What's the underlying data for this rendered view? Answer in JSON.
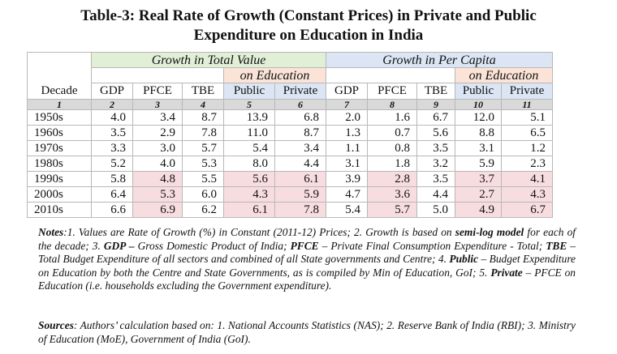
{
  "title_line1": "Table-3: Real Rate of Growth (Constant Prices) in Private and Public",
  "title_line2": "Expenditure on Education in India",
  "group_headers": {
    "total_value": "Growth in Total Value",
    "per_capita": "Growth in Per Capita",
    "on_education": "on Education"
  },
  "columns": [
    "Decade",
    "GDP",
    "PFCE",
    "TBE",
    "Public",
    "Private",
    "GDP",
    "PFCE",
    "TBE",
    "Public",
    "Private"
  ],
  "col_index": [
    "1",
    "2",
    "3",
    "4",
    "5",
    "6",
    "7",
    "8",
    "9",
    "10",
    "11"
  ],
  "rows": [
    [
      "1950s",
      "4.0",
      "3.4",
      "8.7",
      "13.9",
      "6.8",
      "2.0",
      "1.6",
      "6.7",
      "12.0",
      "5.1"
    ],
    [
      "1960s",
      "3.5",
      "2.9",
      "7.8",
      "11.0",
      "8.7",
      "1.3",
      "0.7",
      "5.6",
      "8.8",
      "6.5"
    ],
    [
      "1970s",
      "3.3",
      "3.0",
      "5.7",
      "5.4",
      "3.4",
      "1.1",
      "0.8",
      "3.5",
      "3.1",
      "1.2"
    ],
    [
      "1980s",
      "5.2",
      "4.0",
      "5.3",
      "8.0",
      "4.4",
      "3.1",
      "1.8",
      "3.2",
      "5.9",
      "2.3"
    ],
    [
      "1990s",
      "5.8",
      "4.8",
      "5.5",
      "5.6",
      "6.1",
      "3.9",
      "2.8",
      "3.5",
      "3.7",
      "4.1"
    ],
    [
      "2000s",
      "6.4",
      "5.3",
      "6.0",
      "4.3",
      "5.9",
      "4.7",
      "3.6",
      "4.4",
      "2.7",
      "4.3"
    ],
    [
      "2010s",
      "6.6",
      "6.9",
      "6.2",
      "6.1",
      "7.8",
      "5.4",
      "5.7",
      "5.0",
      "4.9",
      "6.7"
    ]
  ],
  "notes": {
    "label": "Notes",
    "t1": ":1. Values are Rate of Growth (%) in Constant (2011-12) Prices; 2. Growth is based on ",
    "b1": "semi-log model",
    "t2": " for each of the decade; 3. ",
    "b2": "GDP –",
    "t3": " Gross Domestic Product of India; ",
    "b3": "PFCE",
    "t4": " – Private Final Consumption Expenditure - Total; ",
    "b4": "TBE",
    "t5": " – Total Budget Expenditure of all sectors and combined of all State governments and Centre; 4. ",
    "b5": "Public",
    "t6": " – Budget Expenditure on Education by both the Centre and State Governments, as is compiled by Min of Education, GoI; 5. ",
    "b6": "Private",
    "t7": " – PFCE on Education (i.e. households excluding the Government expenditure)."
  },
  "sources": {
    "label": "Sources",
    "text": ": Authors’ calculation based on: 1. National Accounts Statistics (NAS); 2. Reserve Bank of India (RBI); 3. Ministry of Education (MoE), Government of India (GoI)."
  },
  "colors": {
    "green_header": "#e1efd7",
    "blue_header": "#dbe5f3",
    "pink_header": "#fbe4d7",
    "highlight": "#f7dde0"
  }
}
